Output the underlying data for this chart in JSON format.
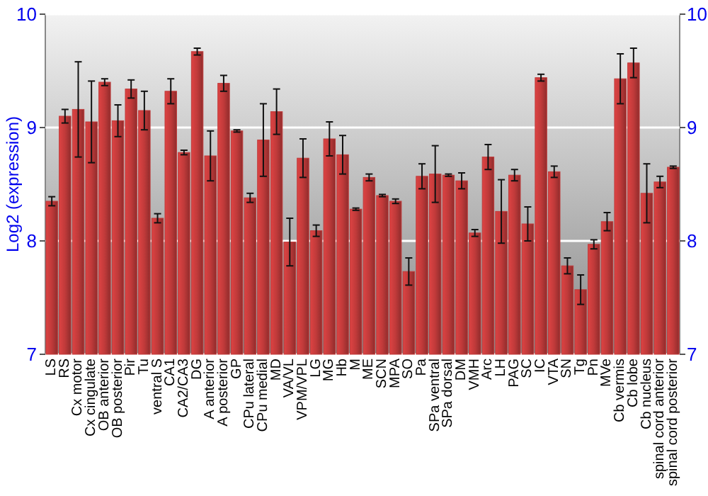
{
  "chart_data": {
    "type": "bar",
    "ylabel": "Log2 (expression)",
    "categories": [
      "LS",
      "RS",
      "Cx motor",
      "Cx cingulate",
      "OB anterior",
      "OB posterior",
      "Pir",
      "Tu",
      "ventral S",
      "CA1",
      "CA2/CA3",
      "DG",
      "A anterior",
      "A posterior",
      "GP",
      "CPu lateral",
      "CPu medial",
      "MD",
      "VA/VL",
      "VPM/VPL",
      "LG",
      "MG",
      "Hb",
      "M",
      "ME",
      "SCN",
      "MPA",
      "SO",
      "Pa",
      "SPa ventral",
      "SPa dorsal",
      "DM",
      "VMH",
      "Arc",
      "LH",
      "PAG",
      "SC",
      "IC",
      "VTA",
      "SN",
      "Tg",
      "Pn",
      "MVe",
      "Cb vermis",
      "Cb lobe",
      "Cb nucleus",
      "spinal cord anterior",
      "spinal cord posterior"
    ],
    "values": [
      8.35,
      9.1,
      9.16,
      9.05,
      9.4,
      9.06,
      9.34,
      9.15,
      8.2,
      9.32,
      8.78,
      9.67,
      8.75,
      9.39,
      8.97,
      8.38,
      8.89,
      9.14,
      7.99,
      8.73,
      8.09,
      8.9,
      8.76,
      8.28,
      8.56,
      8.4,
      8.35,
      7.73,
      8.57,
      8.59,
      8.58,
      8.53,
      8.07,
      8.74,
      8.26,
      8.58,
      8.15,
      9.44,
      8.61,
      7.78,
      7.57,
      7.97,
      8.17,
      9.43,
      9.57,
      8.42,
      8.52,
      8.65
    ],
    "errors": [
      0.04,
      0.06,
      0.42,
      0.36,
      0.03,
      0.14,
      0.08,
      0.17,
      0.04,
      0.11,
      0.02,
      0.03,
      0.22,
      0.07,
      0.01,
      0.04,
      0.32,
      0.2,
      0.21,
      0.17,
      0.05,
      0.15,
      0.17,
      0.01,
      0.03,
      0.01,
      0.02,
      0.12,
      0.11,
      0.25,
      0.01,
      0.07,
      0.03,
      0.11,
      0.28,
      0.05,
      0.15,
      0.03,
      0.05,
      0.07,
      0.13,
      0.04,
      0.08,
      0.22,
      0.13,
      0.26,
      0.05,
      0.01
    ],
    "color": "#c03a3a",
    "ylim": [
      7,
      10
    ],
    "yticks": [
      7,
      8,
      9,
      10
    ],
    "y2lim": [
      7,
      10
    ],
    "y2ticks": [
      7,
      8,
      9,
      10
    ],
    "grid": "y"
  }
}
